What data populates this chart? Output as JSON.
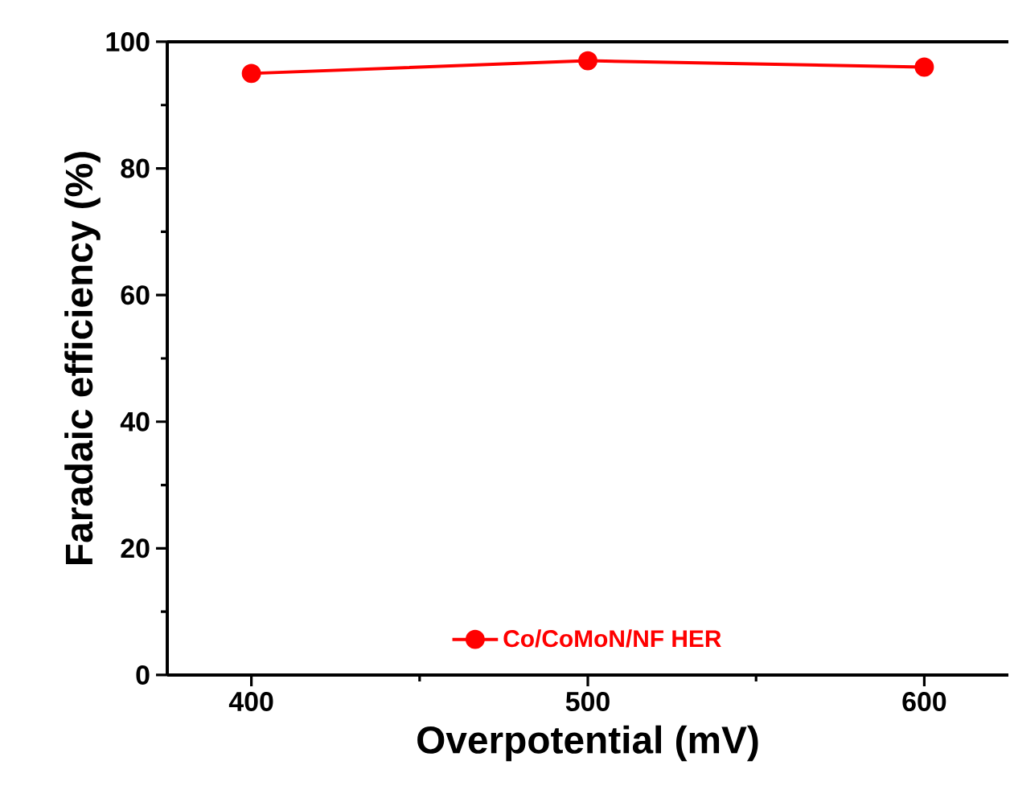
{
  "chart_data": {
    "type": "line",
    "xlabel": "Overpotential (mV)",
    "ylabel": "Faradaic efficiency (%)",
    "x": [
      400,
      500,
      600
    ],
    "series": [
      {
        "name": "Co/CoMoN/NF HER",
        "color": "#ff0000",
        "values": [
          95,
          97,
          96
        ]
      }
    ],
    "xlim": [
      375,
      625
    ],
    "xticks": [
      400,
      500,
      600
    ],
    "ylim": [
      0,
      100
    ],
    "yticks": [
      0,
      20,
      40,
      60,
      80,
      100
    ],
    "marker": "circle",
    "line_style": "solid",
    "legend": "bottom",
    "grid": false
  }
}
